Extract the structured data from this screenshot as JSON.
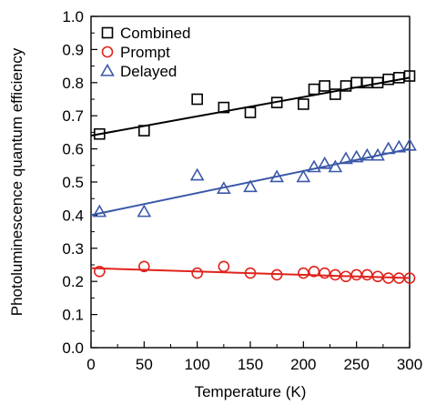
{
  "chart_data": {
    "type": "scatter",
    "title": "",
    "xlabel": "Temperature (K)",
    "ylabel": "Photoluminescence quantum efficiency",
    "xlim": [
      0,
      300
    ],
    "ylim": [
      0.0,
      1.0
    ],
    "x_ticks": [
      0,
      50,
      100,
      150,
      200,
      250,
      300
    ],
    "y_ticks": [
      0.0,
      0.1,
      0.2,
      0.3,
      0.4,
      0.5,
      0.6,
      0.7,
      0.8,
      0.9,
      1.0
    ],
    "x_tick_labels": [
      "0",
      "50",
      "100",
      "150",
      "200",
      "250",
      "300"
    ],
    "y_tick_labels": [
      "0.0",
      "0.1",
      "0.2",
      "0.3",
      "0.4",
      "0.5",
      "0.6",
      "0.7",
      "0.8",
      "0.9",
      "1.0"
    ],
    "grid": false,
    "legend_position": "top-left",
    "series": [
      {
        "name": "Combined",
        "marker": "square",
        "color": "#000000",
        "x": [
          8,
          50,
          100,
          125,
          150,
          175,
          200,
          210,
          220,
          230,
          240,
          250,
          260,
          270,
          280,
          290,
          300
        ],
        "y": [
          0.645,
          0.655,
          0.75,
          0.725,
          0.71,
          0.74,
          0.735,
          0.78,
          0.79,
          0.765,
          0.79,
          0.8,
          0.8,
          0.8,
          0.81,
          0.815,
          0.82
        ],
        "fit": [
          0.64,
          0.815
        ]
      },
      {
        "name": "Prompt",
        "marker": "circle",
        "color": "#e0231c",
        "x": [
          8,
          50,
          100,
          125,
          150,
          175,
          200,
          210,
          220,
          230,
          240,
          250,
          260,
          270,
          280,
          290,
          300
        ],
        "y": [
          0.23,
          0.245,
          0.225,
          0.245,
          0.225,
          0.22,
          0.225,
          0.23,
          0.225,
          0.22,
          0.215,
          0.22,
          0.22,
          0.215,
          0.21,
          0.21,
          0.21
        ],
        "fit": [
          0.24,
          0.21
        ]
      },
      {
        "name": "Delayed",
        "marker": "triangle",
        "color": "#3a58a8",
        "x": [
          8,
          50,
          100,
          125,
          150,
          175,
          200,
          210,
          220,
          230,
          240,
          250,
          260,
          270,
          280,
          290,
          300
        ],
        "y": [
          0.41,
          0.41,
          0.52,
          0.48,
          0.485,
          0.515,
          0.515,
          0.545,
          0.555,
          0.545,
          0.57,
          0.575,
          0.58,
          0.58,
          0.6,
          0.605,
          0.61
        ],
        "fit": [
          0.4,
          0.6
        ]
      }
    ]
  }
}
